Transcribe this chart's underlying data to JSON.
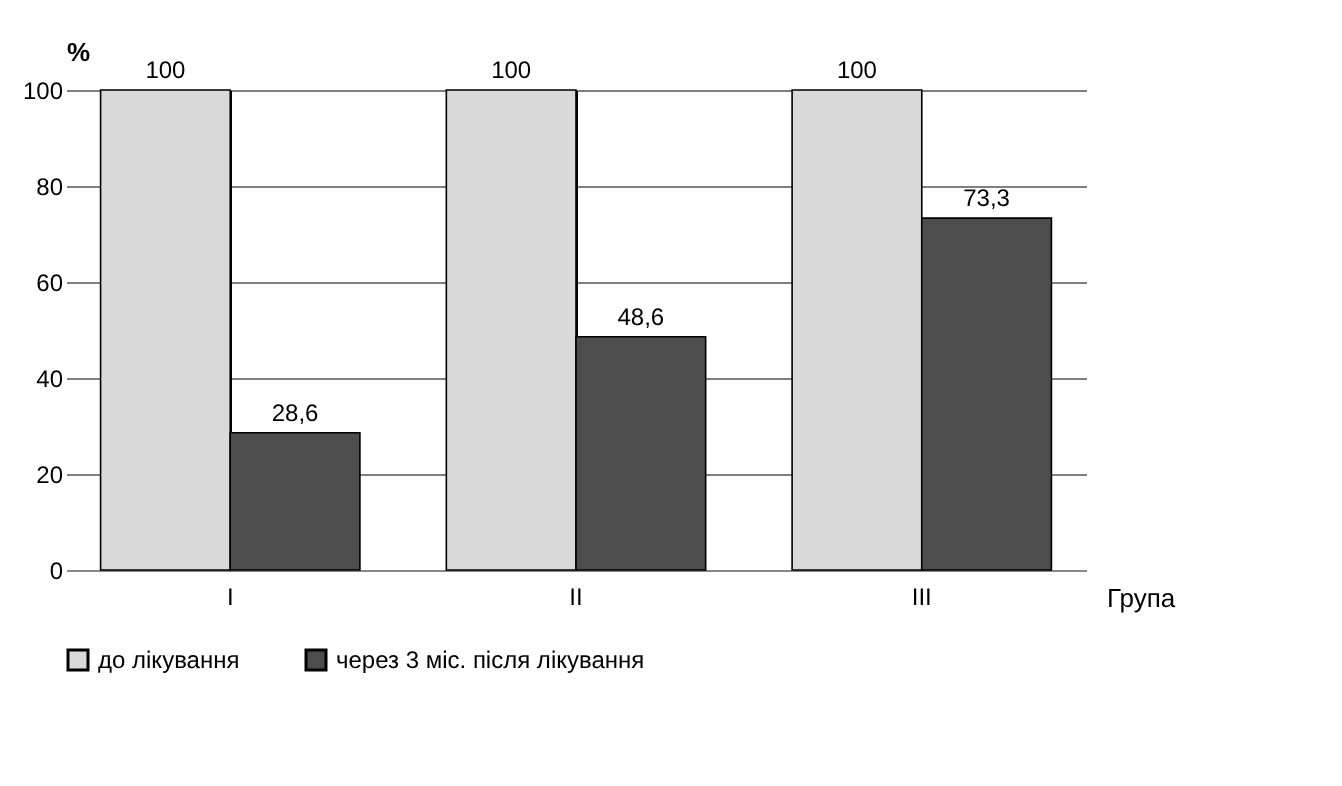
{
  "chart_data": {
    "type": "bar",
    "ylabel": "%",
    "xlabel": "Група",
    "categories": [
      "I",
      "II",
      "III"
    ],
    "series": [
      {
        "name": "до лікування",
        "color": "#d9d9d9",
        "values": [
          100,
          100,
          100
        ],
        "value_labels": [
          "100",
          "100",
          "100"
        ]
      },
      {
        "name": "через 3 міс. після лікування",
        "color": "#4d4d4d",
        "values": [
          28.6,
          48.6,
          73.3
        ],
        "value_labels": [
          "28,6",
          "48,6",
          "73,3"
        ]
      }
    ],
    "ylim": [
      0,
      100
    ],
    "yticks": [
      0,
      20,
      40,
      60,
      80,
      100
    ],
    "grid": true,
    "legend": "bottom"
  }
}
